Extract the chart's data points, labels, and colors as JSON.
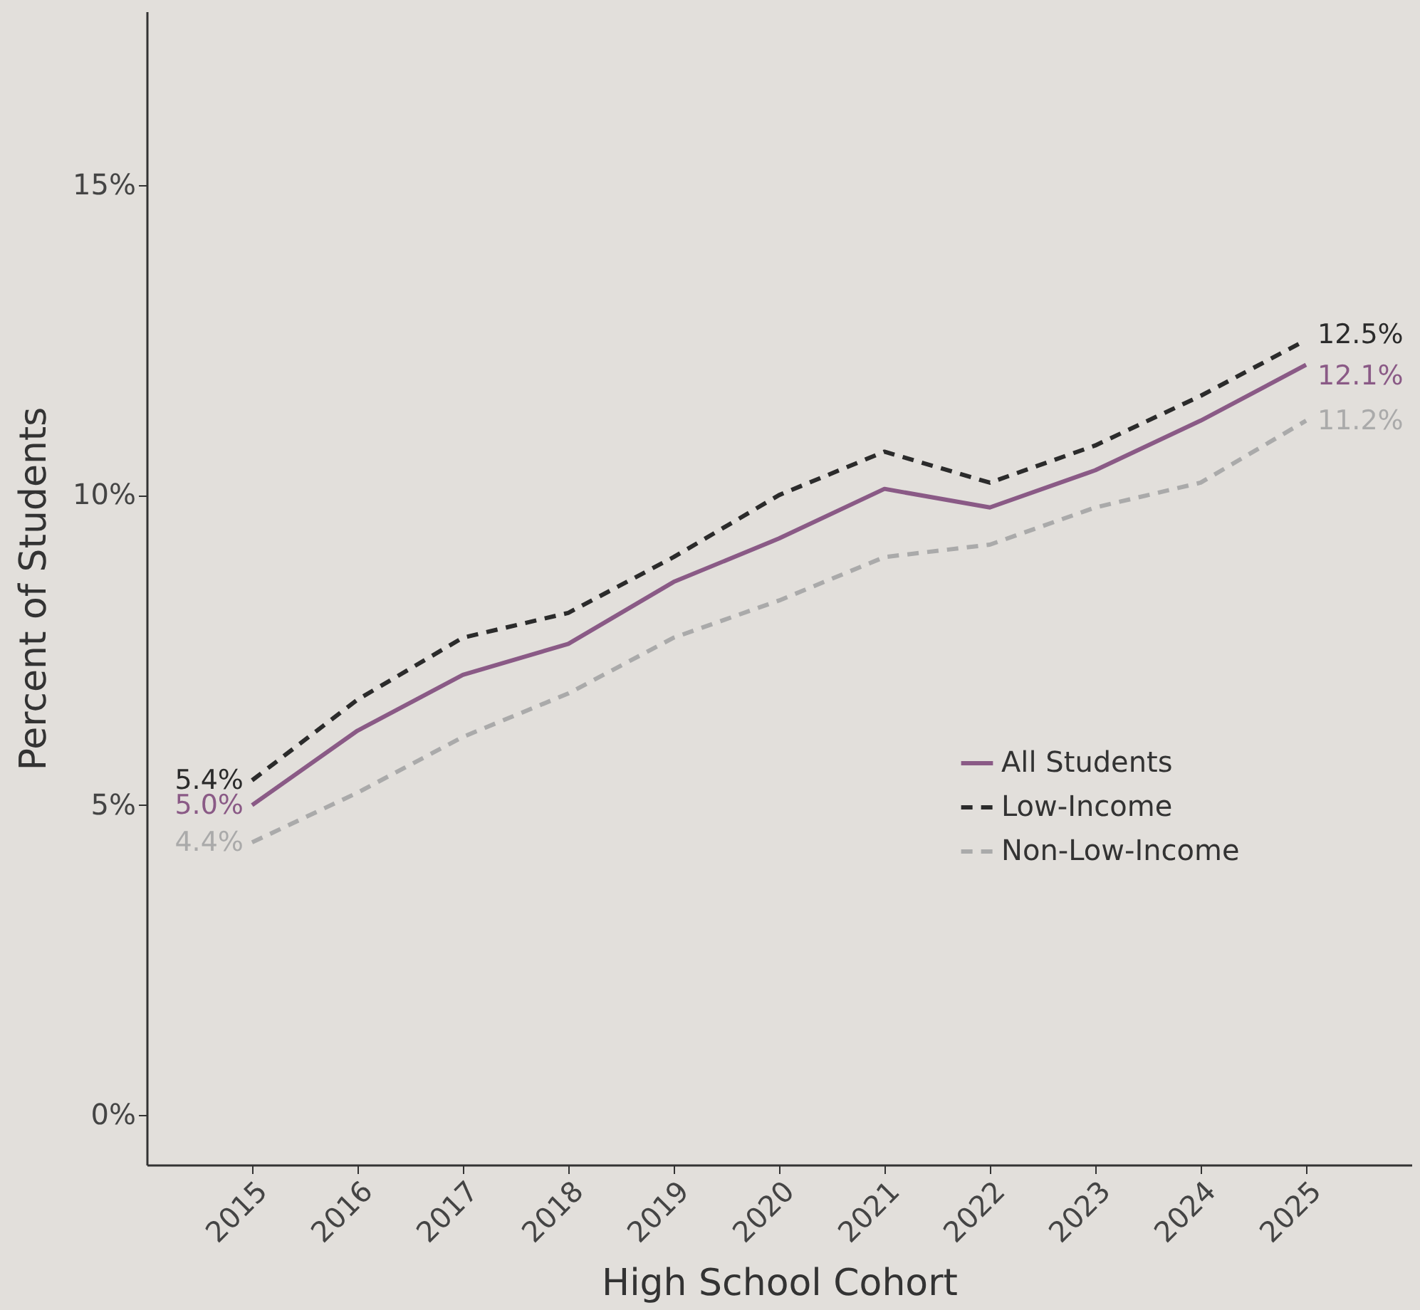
{
  "chart_data": {
    "type": "line",
    "xlabel": "High School Cohort",
    "ylabel": "Percent of Students",
    "categories": [
      "2015",
      "2016",
      "2017",
      "2018",
      "2019",
      "2020",
      "2021",
      "2022",
      "2023",
      "2024",
      "2025"
    ],
    "series": [
      {
        "name": "All Students",
        "color": "#8a5a86",
        "line_style": "solid",
        "values": [
          5.0,
          6.2,
          7.1,
          7.6,
          8.6,
          9.3,
          10.1,
          9.8,
          10.4,
          11.2,
          12.1
        ],
        "value_labels": [
          "5.0%",
          null,
          null,
          null,
          null,
          null,
          null,
          null,
          null,
          null,
          "12.1%"
        ]
      },
      {
        "name": "Low-Income",
        "color": "#2b2b2b",
        "line_style": "dashed",
        "values": [
          5.4,
          6.7,
          7.7,
          8.1,
          9.0,
          10.0,
          10.7,
          10.2,
          10.8,
          11.6,
          12.5
        ],
        "value_labels": [
          "5.4%",
          null,
          null,
          null,
          null,
          null,
          null,
          null,
          null,
          null,
          "12.5%"
        ]
      },
      {
        "name": "Non-Low-Income",
        "color": "#aaaaaa",
        "line_style": "dashed",
        "values": [
          4.4,
          5.2,
          6.1,
          6.8,
          7.7,
          8.3,
          9.0,
          9.2,
          9.8,
          10.2,
          11.2
        ],
        "value_labels": [
          "4.4%",
          null,
          null,
          null,
          null,
          null,
          null,
          null,
          null,
          null,
          "11.2%"
        ]
      }
    ],
    "ylim": [
      -0.8,
      17.8
    ],
    "yticks": [
      {
        "value": 0,
        "label": "0%"
      },
      {
        "value": 5,
        "label": "5%"
      },
      {
        "value": 10,
        "label": "10%"
      },
      {
        "value": 15,
        "label": "15%"
      }
    ],
    "legend": "bottom right"
  }
}
